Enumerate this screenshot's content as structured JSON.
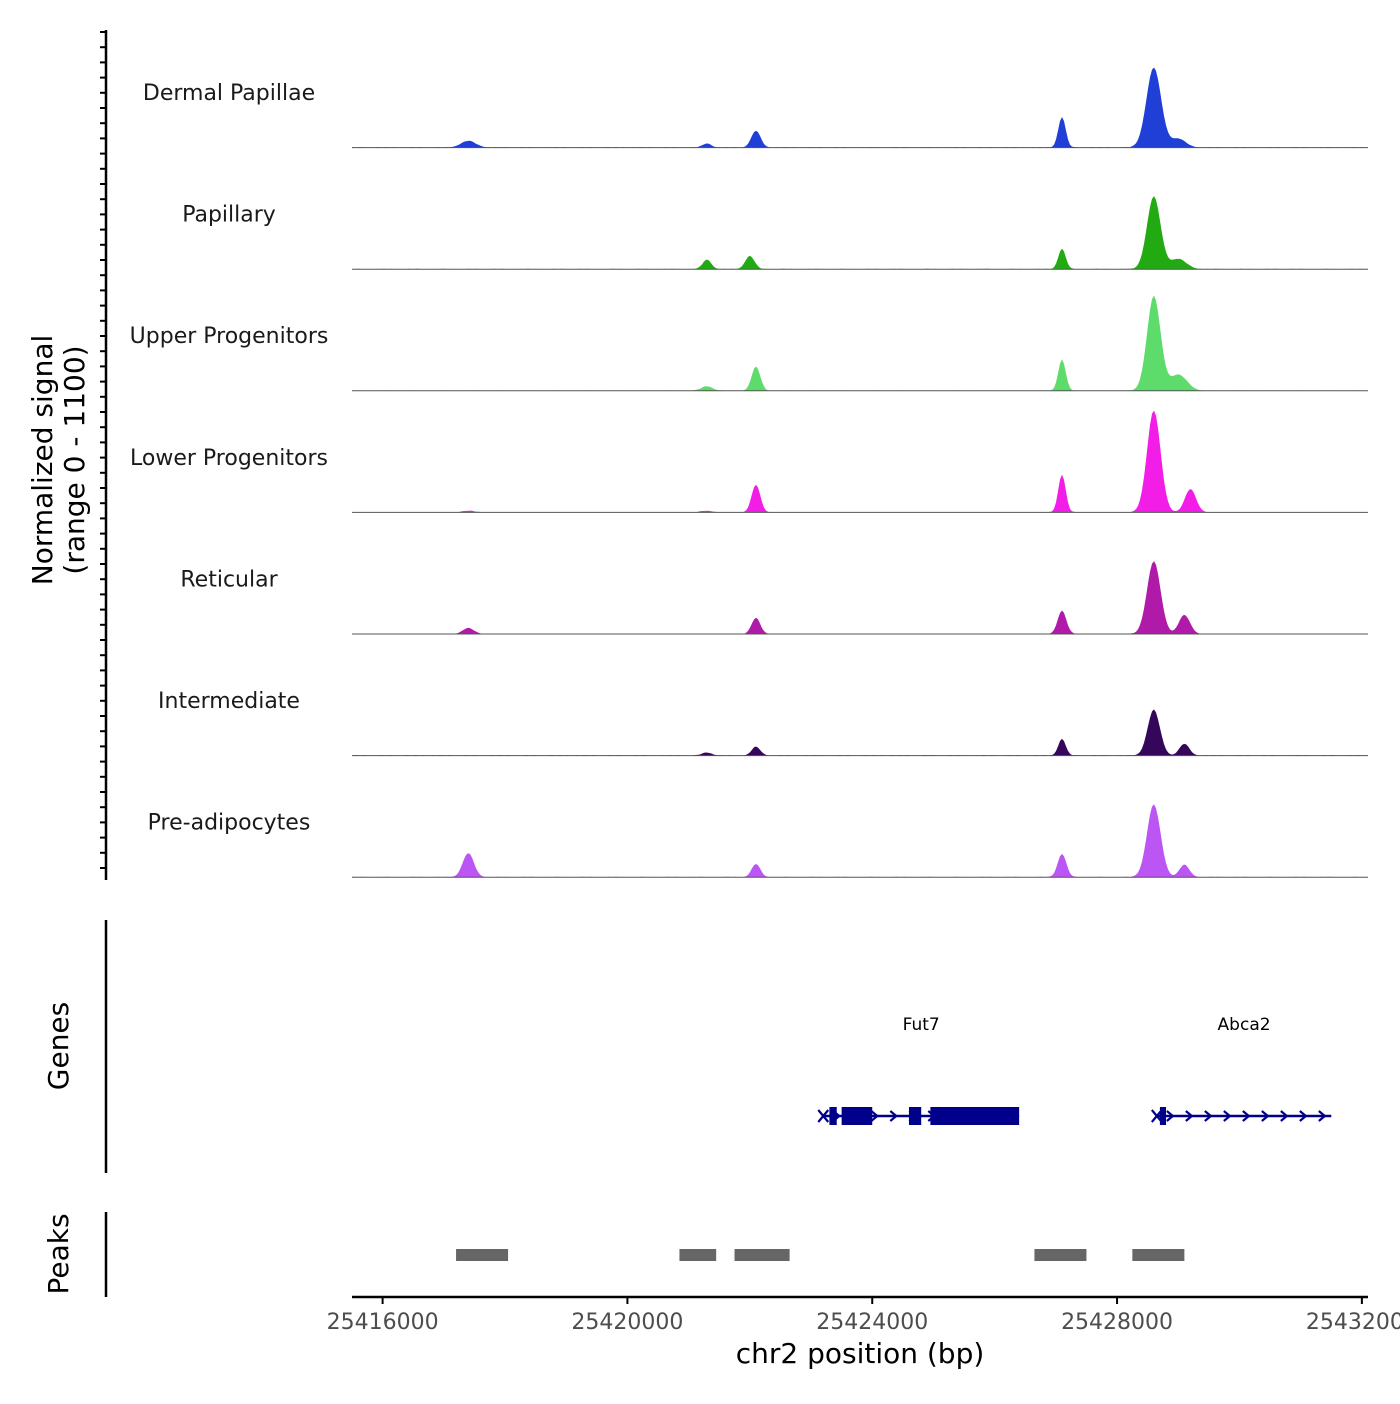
{
  "chart_data": {
    "type": "area",
    "description_region": "chr2",
    "ylabel_line1": "Normalized signal",
    "ylabel_line2": "(range 0 - 1100)",
    "ylim": [
      0,
      1100
    ],
    "xlabel": "chr2 position (bp)",
    "xlim": [
      25415500,
      25432100
    ],
    "xticks": [
      25416000,
      25420000,
      25424000,
      25428000,
      25432000
    ],
    "xtick_labels": [
      "25416000",
      "25420000",
      "25424000",
      "25428000",
      "25432000"
    ],
    "tracks": [
      {
        "name": "Dermal Papillae",
        "color": "#1f3fd6",
        "peaks": [
          [
            25417400,
            90,
            120
          ],
          [
            25421300,
            55,
            70
          ],
          [
            25422100,
            230,
            75
          ],
          [
            25427100,
            420,
            60
          ],
          [
            25428600,
            1100,
            120
          ],
          [
            25429000,
            120,
            120
          ]
        ]
      },
      {
        "name": "Papillary",
        "color": "#22aa12",
        "peaks": [
          [
            25421300,
            130,
            70
          ],
          [
            25422000,
            180,
            75
          ],
          [
            25427100,
            280,
            60
          ],
          [
            25428600,
            1000,
            110
          ],
          [
            25429000,
            140,
            130
          ]
        ]
      },
      {
        "name": "Upper Progenitors",
        "color": "#5ddc6c",
        "peaks": [
          [
            25421300,
            60,
            90
          ],
          [
            25422100,
            330,
            70
          ],
          [
            25427100,
            430,
            60
          ],
          [
            25428600,
            1300,
            110
          ],
          [
            25429000,
            220,
            140
          ]
        ]
      },
      {
        "name": "Lower Progenitors",
        "color": "#f21ee8",
        "peaks": [
          [
            25417400,
            20,
            100
          ],
          [
            25421300,
            20,
            90
          ],
          [
            25422100,
            380,
            70
          ],
          [
            25427100,
            520,
            60
          ],
          [
            25428600,
            1400,
            110
          ],
          [
            25429200,
            320,
            90
          ]
        ]
      },
      {
        "name": "Reticular",
        "color": "#b01aa8",
        "peaks": [
          [
            25417400,
            80,
            90
          ],
          [
            25422100,
            220,
            70
          ],
          [
            25427100,
            320,
            70
          ],
          [
            25428600,
            1000,
            110
          ],
          [
            25429100,
            260,
            90
          ]
        ]
      },
      {
        "name": "Intermediate",
        "color": "#35075a",
        "peaks": [
          [
            25421300,
            40,
            80
          ],
          [
            25422100,
            120,
            70
          ],
          [
            25427100,
            230,
            60
          ],
          [
            25428600,
            630,
            100
          ],
          [
            25429100,
            160,
            80
          ]
        ]
      },
      {
        "name": "Pre-adipocytes",
        "color": "#bb55f4",
        "peaks": [
          [
            25417400,
            330,
            90
          ],
          [
            25422100,
            180,
            70
          ],
          [
            25427100,
            320,
            70
          ],
          [
            25428600,
            1000,
            110
          ],
          [
            25429100,
            170,
            80
          ]
        ]
      }
    ],
    "genes_label": "Genes",
    "genes": [
      {
        "name": "Fut7",
        "start": 25423200,
        "end": 25426400,
        "strand": "+",
        "exons": [
          [
            25423300,
            25423420
          ],
          [
            25423500,
            25424000
          ],
          [
            25424600,
            25424800
          ],
          [
            25424950,
            25426400
          ]
        ]
      },
      {
        "name": "Abca2",
        "start": 25428650,
        "end": 25431500,
        "strand": "+",
        "exons": [
          [
            25428700,
            25428800
          ]
        ]
      }
    ],
    "gene_color": "#00008b",
    "peaks_label": "Peaks",
    "peak_regions": [
      [
        25417200,
        25418050
      ],
      [
        25420850,
        25421450
      ],
      [
        25421750,
        25422650
      ],
      [
        25426650,
        25427500
      ],
      [
        25428250,
        25429100
      ]
    ],
    "peak_color": "#666666"
  }
}
